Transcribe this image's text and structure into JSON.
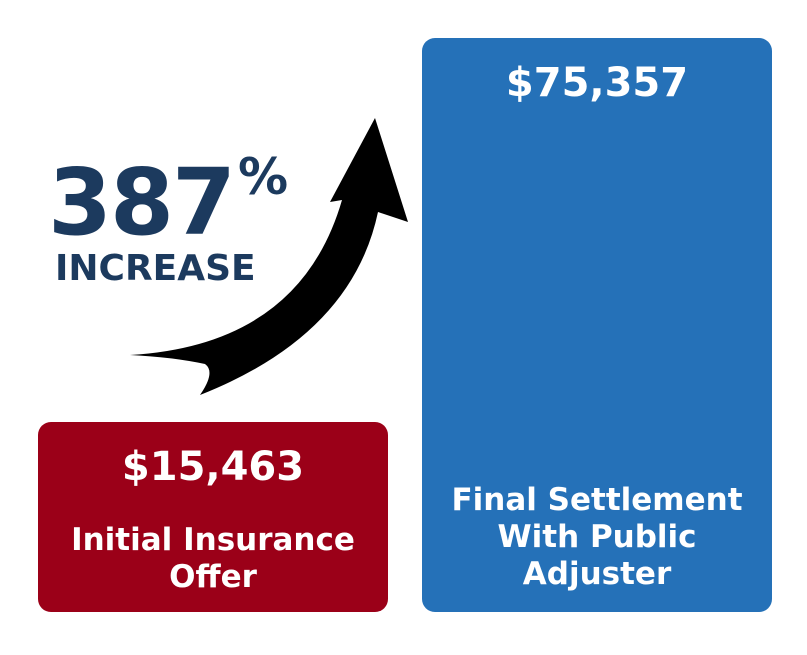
{
  "increase": {
    "value": "387",
    "unit": "%",
    "label": "INCREASE"
  },
  "initial": {
    "amount": "$15,463",
    "label": "Initial Insurance Offer"
  },
  "final": {
    "amount": "$75,357",
    "label": "Final Settlement With Public Adjuster"
  }
}
